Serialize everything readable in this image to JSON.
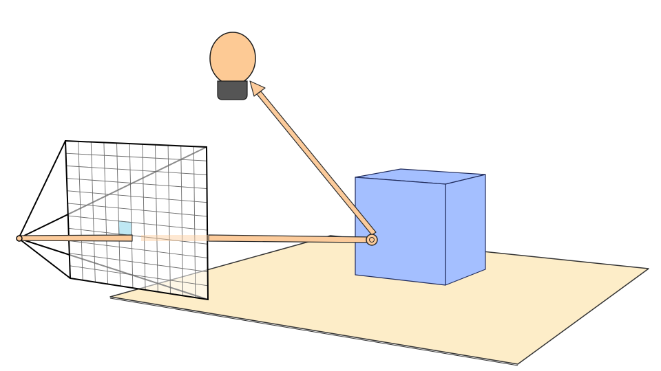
{
  "diagram": {
    "colors": {
      "background": "#ffffff",
      "floor_fill": "#fdedc8",
      "floor_stroke": "#333333",
      "cube_front": "#a4bfff",
      "cube_side": "#a4bfff",
      "cube_top": "#a4bfff",
      "cube_stroke": "#1f2a5a",
      "ray_fill": "#fccb9b",
      "ray_stroke": "#2a2a2a",
      "bulb_fill": "#fdca95",
      "bulb_base": "#555555",
      "grid_line": "#6a6a6a",
      "frustum_line": "#000000",
      "pixel_highlight": "#bfe8f4"
    },
    "icons": {
      "light": "light-bulb-icon",
      "camera": "camera-eye-point-icon"
    },
    "grid": {
      "columns": 11,
      "rows": 11,
      "highlighted_cell": {
        "column": 4,
        "row": 6
      }
    }
  }
}
